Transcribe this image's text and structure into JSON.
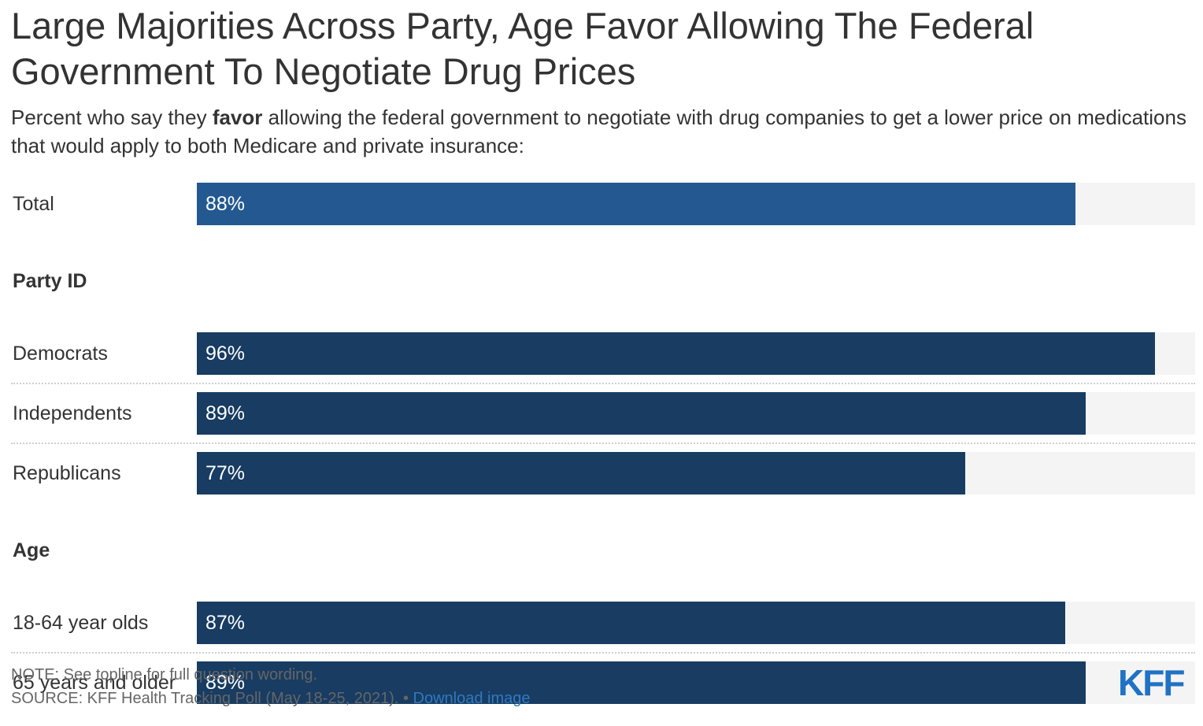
{
  "title": "Large Majorities Across Party, Age Favor Allowing The Federal Government To Negotiate Drug Prices",
  "subtitle": {
    "before": "Percent who say they ",
    "bold": "favor",
    "after": " allowing the federal government to negotiate with drug companies to get a lower price on medications that would apply to both Medicare and private insurance:"
  },
  "note": "NOTE: See topline for full question wording.",
  "source": {
    "text": "SOURCE: KFF Health Tracking Poll (May 18-25, 2021). • ",
    "link_label": "Download image"
  },
  "logo": "KFF",
  "colors": {
    "total_bar": "#235990",
    "group_bar": "#183c62",
    "track": "#f4f4f4"
  },
  "chart_data": {
    "type": "bar",
    "orientation": "horizontal",
    "xlim": [
      0,
      100
    ],
    "groups": [
      {
        "label": "",
        "rows": [
          {
            "category": "Total",
            "value": 88,
            "value_label": "88%"
          }
        ]
      },
      {
        "label": "Party ID",
        "rows": [
          {
            "category": "Democrats",
            "value": 96,
            "value_label": "96%"
          },
          {
            "category": "Independents",
            "value": 89,
            "value_label": "89%"
          },
          {
            "category": "Republicans",
            "value": 77,
            "value_label": "77%"
          }
        ]
      },
      {
        "label": "Age",
        "rows": [
          {
            "category": "18-64 year olds",
            "value": 87,
            "value_label": "87%"
          },
          {
            "category": "65 years and older",
            "value": 89,
            "value_label": "89%"
          }
        ]
      }
    ]
  }
}
